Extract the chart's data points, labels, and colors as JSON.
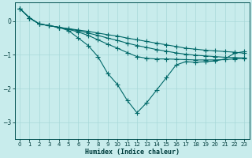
{
  "xlabel": "Humidex (Indice chaleur)",
  "bg_color": "#c8ecec",
  "grid_color": "#a8d8d8",
  "line_color": "#006868",
  "xlim": [
    -0.5,
    23.5
  ],
  "ylim": [
    -3.5,
    0.55
  ],
  "yticks": [
    0,
    -1,
    -2,
    -3
  ],
  "xticks": [
    0,
    1,
    2,
    3,
    4,
    5,
    6,
    7,
    8,
    9,
    10,
    11,
    12,
    13,
    14,
    15,
    16,
    17,
    18,
    19,
    20,
    21,
    22,
    23
  ],
  "line_dip_x": [
    0,
    1,
    2,
    3,
    4,
    5,
    6,
    7,
    8,
    9,
    10,
    11,
    12,
    13,
    14,
    15,
    16,
    17,
    18,
    19,
    20,
    21,
    22,
    23
  ],
  "line_dip_y": [
    0.38,
    0.1,
    -0.08,
    -0.13,
    -0.18,
    -0.28,
    -0.5,
    -0.72,
    -1.05,
    -1.55,
    -1.88,
    -2.35,
    -2.72,
    -2.42,
    -2.05,
    -1.68,
    -1.3,
    -1.2,
    -1.22,
    -1.2,
    -1.18,
    -1.12,
    -0.95,
    -0.9
  ],
  "line_top_x": [
    0,
    1,
    2,
    3,
    4,
    5,
    6,
    7,
    8,
    9,
    10,
    11,
    12,
    13,
    14,
    15,
    16,
    17,
    18,
    19,
    20,
    21,
    22,
    23
  ],
  "line_top_y": [
    0.38,
    0.1,
    -0.08,
    -0.13,
    -0.18,
    -0.22,
    -0.26,
    -0.3,
    -0.35,
    -0.4,
    -0.44,
    -0.5,
    -0.55,
    -0.6,
    -0.65,
    -0.7,
    -0.75,
    -0.8,
    -0.83,
    -0.86,
    -0.88,
    -0.9,
    -0.92,
    -0.95
  ],
  "line_mid_x": [
    0,
    1,
    2,
    3,
    4,
    5,
    6,
    7,
    8,
    9,
    10,
    11,
    12,
    13,
    14,
    15,
    16,
    17,
    18,
    19,
    20,
    21,
    22,
    23
  ],
  "line_mid_y": [
    0.38,
    0.1,
    -0.08,
    -0.13,
    -0.18,
    -0.23,
    -0.28,
    -0.35,
    -0.42,
    -0.5,
    -0.57,
    -0.65,
    -0.72,
    -0.78,
    -0.84,
    -0.89,
    -0.94,
    -0.98,
    -1.01,
    -1.03,
    -1.05,
    -1.07,
    -1.08,
    -1.09
  ],
  "line_low_x": [
    0,
    1,
    2,
    3,
    4,
    5,
    6,
    7,
    8,
    9,
    10,
    11,
    12,
    13,
    14,
    15,
    16,
    17,
    18,
    19,
    20,
    21,
    22,
    23
  ],
  "line_low_y": [
    0.38,
    0.1,
    -0.08,
    -0.13,
    -0.18,
    -0.24,
    -0.32,
    -0.42,
    -0.55,
    -0.68,
    -0.8,
    -0.93,
    -1.05,
    -1.1,
    -1.12,
    -1.12,
    -1.13,
    -1.14,
    -1.15,
    -1.15,
    -1.15,
    -1.14,
    -1.12,
    -1.1
  ]
}
